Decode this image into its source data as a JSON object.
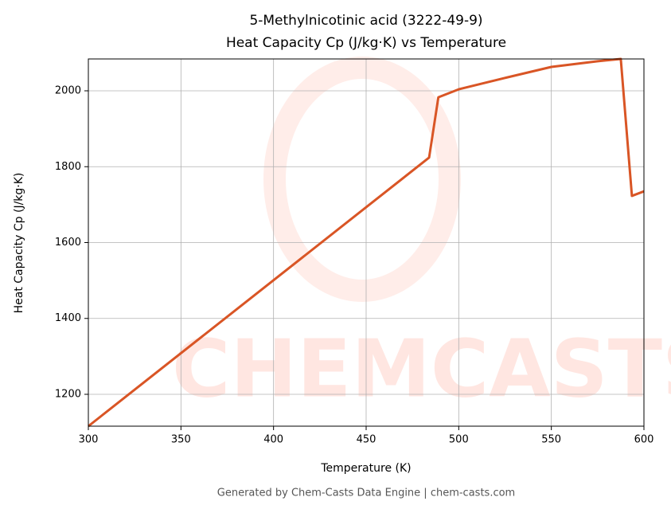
{
  "chart_data": {
    "type": "line",
    "title": "5-Methylnicotinic acid (3222-49-9)",
    "subtitle": "Heat Capacity Cp (J/kg·K) vs Temperature",
    "x_label": "Temperature (K)",
    "y_label": "Heat Capacity Cp (J/kg·K)",
    "footer": "Generated by Chem-Casts Data Engine | chem-casts.com",
    "watermark": "CHEMCASTS",
    "x": [
      300,
      484,
      489,
      500,
      525,
      550,
      575,
      587.5,
      593.5,
      600
    ],
    "series": [
      {
        "name": "Cp",
        "color": "#d95525",
        "values": [
          1116,
          1824,
          1983,
          2004,
          2034,
          2063,
          2078,
          2084,
          1723,
          1735
        ]
      }
    ],
    "xlim": [
      300,
      600
    ],
    "xticks": [
      300,
      350,
      400,
      450,
      500,
      550,
      600
    ],
    "ylim": [
      1116,
      2084
    ],
    "yticks": [
      1200,
      1400,
      1600,
      1800,
      2000
    ],
    "grid": true
  }
}
